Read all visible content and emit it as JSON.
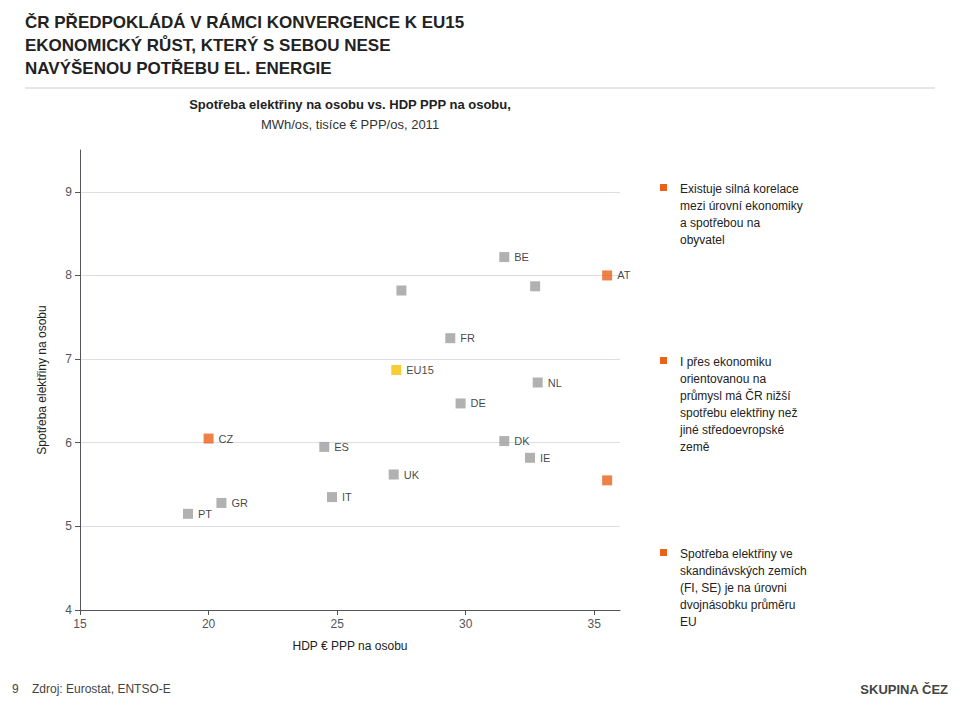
{
  "chart_data": {
    "type": "scatter",
    "title": "Spotřeba elektřiny na osobu vs. HDP PPP na osobu,",
    "subtitle": "MWh/os, tisíce € PPP/os, 2011",
    "xlabel": "HDP € PPP na osobu",
    "ylabel": "Spotřeba elektřiny na osobu",
    "xlim": [
      15,
      36
    ],
    "ylim": [
      4,
      9.5
    ],
    "xticks": [
      15,
      20,
      25,
      30,
      35
    ],
    "yticks": [
      4,
      5,
      6,
      7,
      8,
      9
    ],
    "grid": true,
    "marker": "square",
    "x": [
      19.2,
      20.5,
      20.0,
      24.5,
      24.8,
      27.3,
      27.2,
      29.4,
      29.8,
      31.5,
      31.5,
      32.5,
      32.8,
      32.7,
      35.5,
      35.5,
      27.5
    ],
    "values": [
      5.15,
      5.28,
      6.05,
      5.95,
      5.35,
      6.87,
      5.62,
      7.25,
      6.47,
      8.22,
      6.02,
      5.82,
      6.72,
      7.87,
      8.0,
      5.55,
      7.82
    ],
    "labels": [
      "PT",
      "GR",
      "CZ",
      "ES",
      "IT",
      "EU15",
      "UK",
      "FR",
      "DE",
      "BE",
      "DK",
      "IE",
      "NL",
      null,
      "AT",
      null,
      null
    ],
    "colors": [
      "#9d9d9d",
      "#9d9d9d",
      "#e8621a",
      "#9d9d9d",
      "#9d9d9d",
      "#f5c000",
      "#9d9d9d",
      "#9d9d9d",
      "#9d9d9d",
      "#9d9d9d",
      "#9d9d9d",
      "#9d9d9d",
      "#9d9d9d",
      "#9d9d9d",
      "#e8621a",
      "#e8621a",
      "#9d9d9d"
    ],
    "annotations": [
      "ČR PŘEDPOKLÁDÁ V RÁMCI KONVERGENCE K EU15",
      "EKONOMICKÝ RŮST, KTERÝ S SEBOU NESE",
      "NAVÝŠENOU POTŘEBU EL. ENERGIE",
      "Existuje silná korelace\nmezi úrovní ekonomiky\na spotřebou na\nobyvatel",
      "I přes ekonomiku\norientovanou na\nprůmysl má ČR nižší\nspotřebu elektřiny než\njiné středoevropské\nzemě",
      "Spotřeba elektřiny ve\nskandinávských zemích\n(FI, SE) je na úrovni\ndvojnásobku průměru\nEU",
      "9    Zdroj: Eurostat, ENTSO-E",
      "SKUPINA ČEZ"
    ]
  }
}
